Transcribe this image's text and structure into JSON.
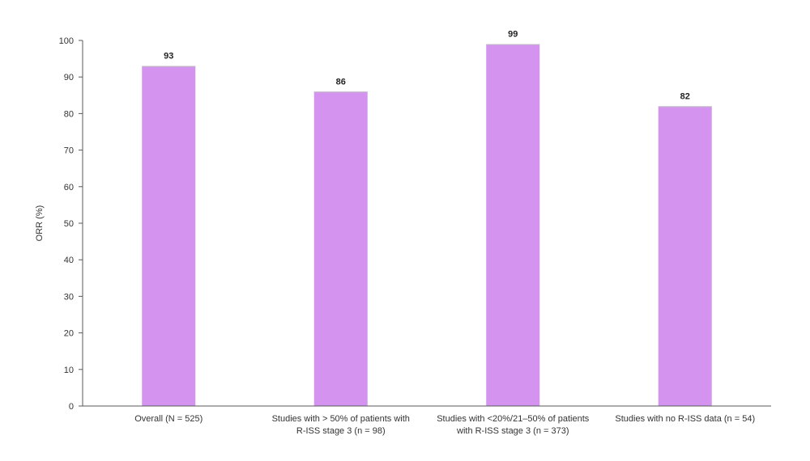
{
  "chart_data": {
    "type": "bar",
    "title": "",
    "xlabel": "",
    "ylabel": "ORR (%)",
    "ylim": [
      0,
      100
    ],
    "yticks": [
      0,
      10,
      20,
      30,
      40,
      50,
      60,
      70,
      80,
      90,
      100
    ],
    "grid": false,
    "legend": "none",
    "bar_color": "#D393EF",
    "categories": [
      [
        "Overall (N = 525)"
      ],
      [
        "Studies with > 50% of patients with",
        "R-ISS stage 3 (n = 98)"
      ],
      [
        "Studies with <20%/21–50% of patients",
        "with R-ISS stage 3 (n = 373)"
      ],
      [
        "Studies with no R-ISS data (n = 54)"
      ]
    ],
    "values": [
      93,
      86,
      99,
      82
    ],
    "data_labels": [
      "93",
      "86",
      "99",
      "82"
    ]
  }
}
